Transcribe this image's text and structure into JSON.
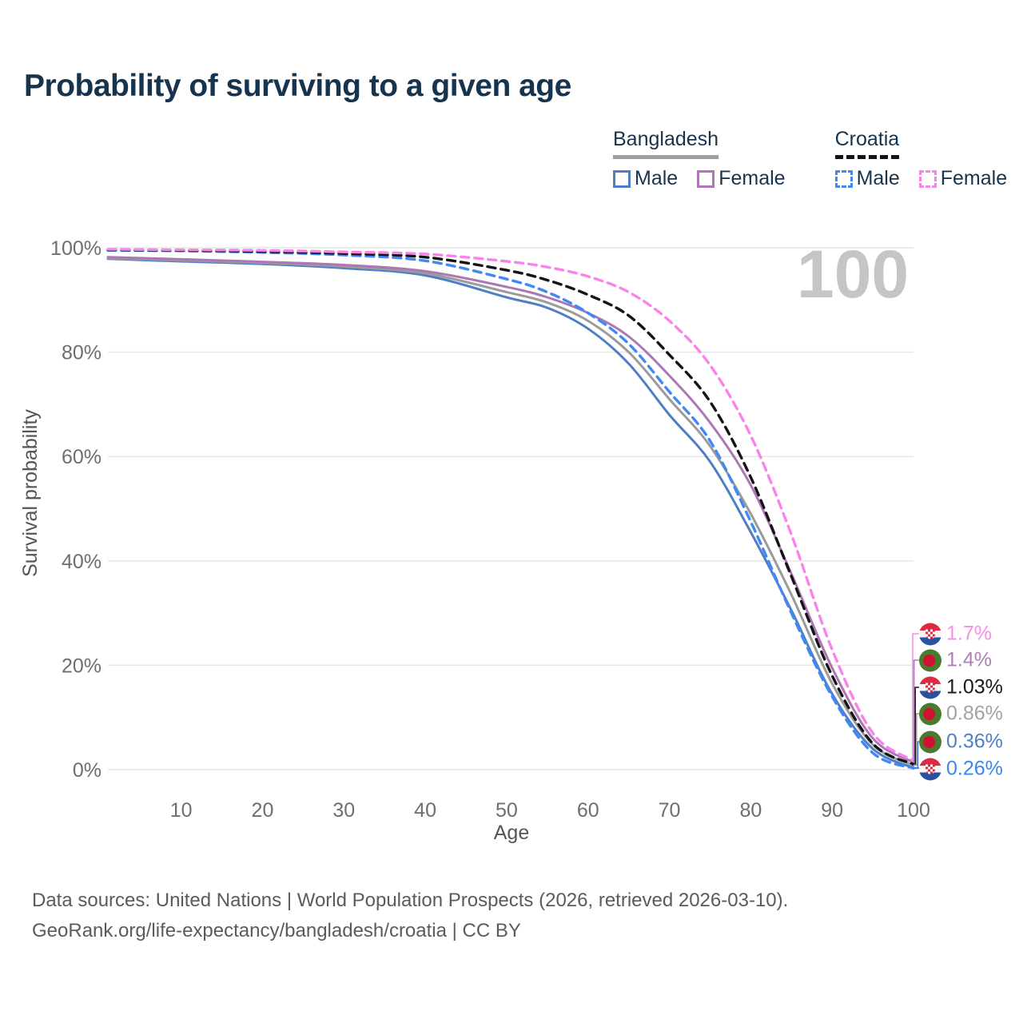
{
  "page": {
    "title": "Probability of surviving to a given age",
    "watermark": "100"
  },
  "legend": {
    "groups": [
      {
        "name": "Bangladesh",
        "underline": "solid",
        "underline_color": "#9e9e9e",
        "items": [
          {
            "label": "Male",
            "color": "#4e7fc4",
            "dash": "false"
          },
          {
            "label": "Female",
            "color": "#ad77b5",
            "dash": "false"
          }
        ]
      },
      {
        "name": "Croatia",
        "underline": "dashed",
        "underline_color": "#141414",
        "items": [
          {
            "label": "Male",
            "color": "#4187f5",
            "dash": "true"
          },
          {
            "label": "Female",
            "color": "#f883ea",
            "dash": "true"
          }
        ]
      }
    ]
  },
  "chart_data": {
    "type": "line",
    "title": "Probability of surviving to a given age",
    "xlabel": "Age",
    "ylabel": "Survival probability",
    "xlim": [
      1,
      100
    ],
    "ylim": [
      0,
      100
    ],
    "grid": true,
    "x_ticks": [
      10,
      20,
      30,
      40,
      50,
      60,
      70,
      80,
      90,
      100
    ],
    "y_tick_values": [
      0,
      20,
      40,
      60,
      80,
      100
    ],
    "y_tick_labels": [
      "0%",
      "20%",
      "40%",
      "60%",
      "80%",
      "100%"
    ],
    "ages": [
      1,
      10,
      20,
      30,
      40,
      50,
      55,
      60,
      65,
      70,
      75,
      80,
      85,
      90,
      95,
      100
    ],
    "series": [
      {
        "name": "Bangladesh Male",
        "country": "Bangladesh",
        "group": "Male",
        "color": "#4e7fc4",
        "dash": false,
        "values": [
          97.9,
          97.4,
          96.9,
          96.1,
          94.7,
          90.5,
          88.5,
          84.5,
          77.8,
          68.0,
          59.0,
          45.5,
          30.5,
          14.5,
          4.0,
          0.36
        ]
      },
      {
        "name": "Bangladesh",
        "country": "Bangladesh",
        "group": "Total",
        "color": "#9b9b9b",
        "dash": false,
        "values": [
          98.0,
          97.6,
          97.1,
          96.4,
          95.1,
          91.5,
          89.5,
          86.0,
          80.0,
          71.0,
          62.0,
          49.0,
          33.5,
          16.5,
          4.8,
          0.86
        ]
      },
      {
        "name": "Bangladesh Female",
        "country": "Bangladesh",
        "group": "Female",
        "color": "#ad77b5",
        "dash": false,
        "values": [
          98.2,
          97.8,
          97.3,
          96.7,
          95.5,
          92.5,
          90.5,
          87.5,
          83.0,
          75.5,
          66.5,
          54.5,
          37.5,
          19.5,
          6.0,
          1.4
        ]
      },
      {
        "name": "Croatia Male",
        "country": "Croatia",
        "group": "Male",
        "color": "#4187f5",
        "dash": true,
        "values": [
          99.5,
          99.4,
          99.1,
          98.6,
          97.5,
          94.0,
          91.5,
          87.5,
          81.6,
          72.4,
          63.0,
          47.5,
          30.0,
          14.0,
          3.2,
          0.26
        ]
      },
      {
        "name": "Croatia",
        "country": "Croatia",
        "group": "Total",
        "color": "#141414",
        "dash": true,
        "values": [
          99.6,
          99.5,
          99.3,
          98.9,
          98.2,
          95.7,
          93.8,
          91.0,
          87.0,
          79.5,
          70.5,
          56.0,
          37.0,
          18.0,
          5.0,
          1.03
        ]
      },
      {
        "name": "Croatia Female",
        "country": "Croatia",
        "group": "Female",
        "color": "#f883ea",
        "dash": true,
        "values": [
          99.7,
          99.6,
          99.5,
          99.2,
          98.8,
          97.4,
          96.3,
          94.5,
          91.5,
          86.0,
          77.5,
          64.0,
          45.0,
          23.0,
          7.0,
          1.7
        ]
      }
    ]
  },
  "end_labels": [
    {
      "value": "1.7%",
      "num": 1.7,
      "flag": "hr",
      "color": "#f48fe8",
      "series": "Croatia Female"
    },
    {
      "value": "1.4%",
      "num": 1.4,
      "flag": "bd",
      "color": "#b07cb8",
      "series": "Bangladesh Female"
    },
    {
      "value": "1.03%",
      "num": 1.03,
      "flag": "hr",
      "color": "#1a1a1a",
      "series": "Croatia"
    },
    {
      "value": "0.86%",
      "num": 0.86,
      "flag": "bd",
      "color": "#a3a3a3",
      "series": "Bangladesh"
    },
    {
      "value": "0.36%",
      "num": 0.36,
      "flag": "bd",
      "color": "#4e7fc4",
      "series": "Bangladesh Male"
    },
    {
      "value": "0.26%",
      "num": 0.26,
      "flag": "hr",
      "color": "#3d85f0",
      "series": "Croatia Male"
    }
  ],
  "footer": {
    "line1": "Data sources: United Nations | World Population Prospects (2026, retrieved 2026-03-10).",
    "line2": "GeoRank.org/life-expectancy/bangladesh/croatia | CC BY"
  }
}
